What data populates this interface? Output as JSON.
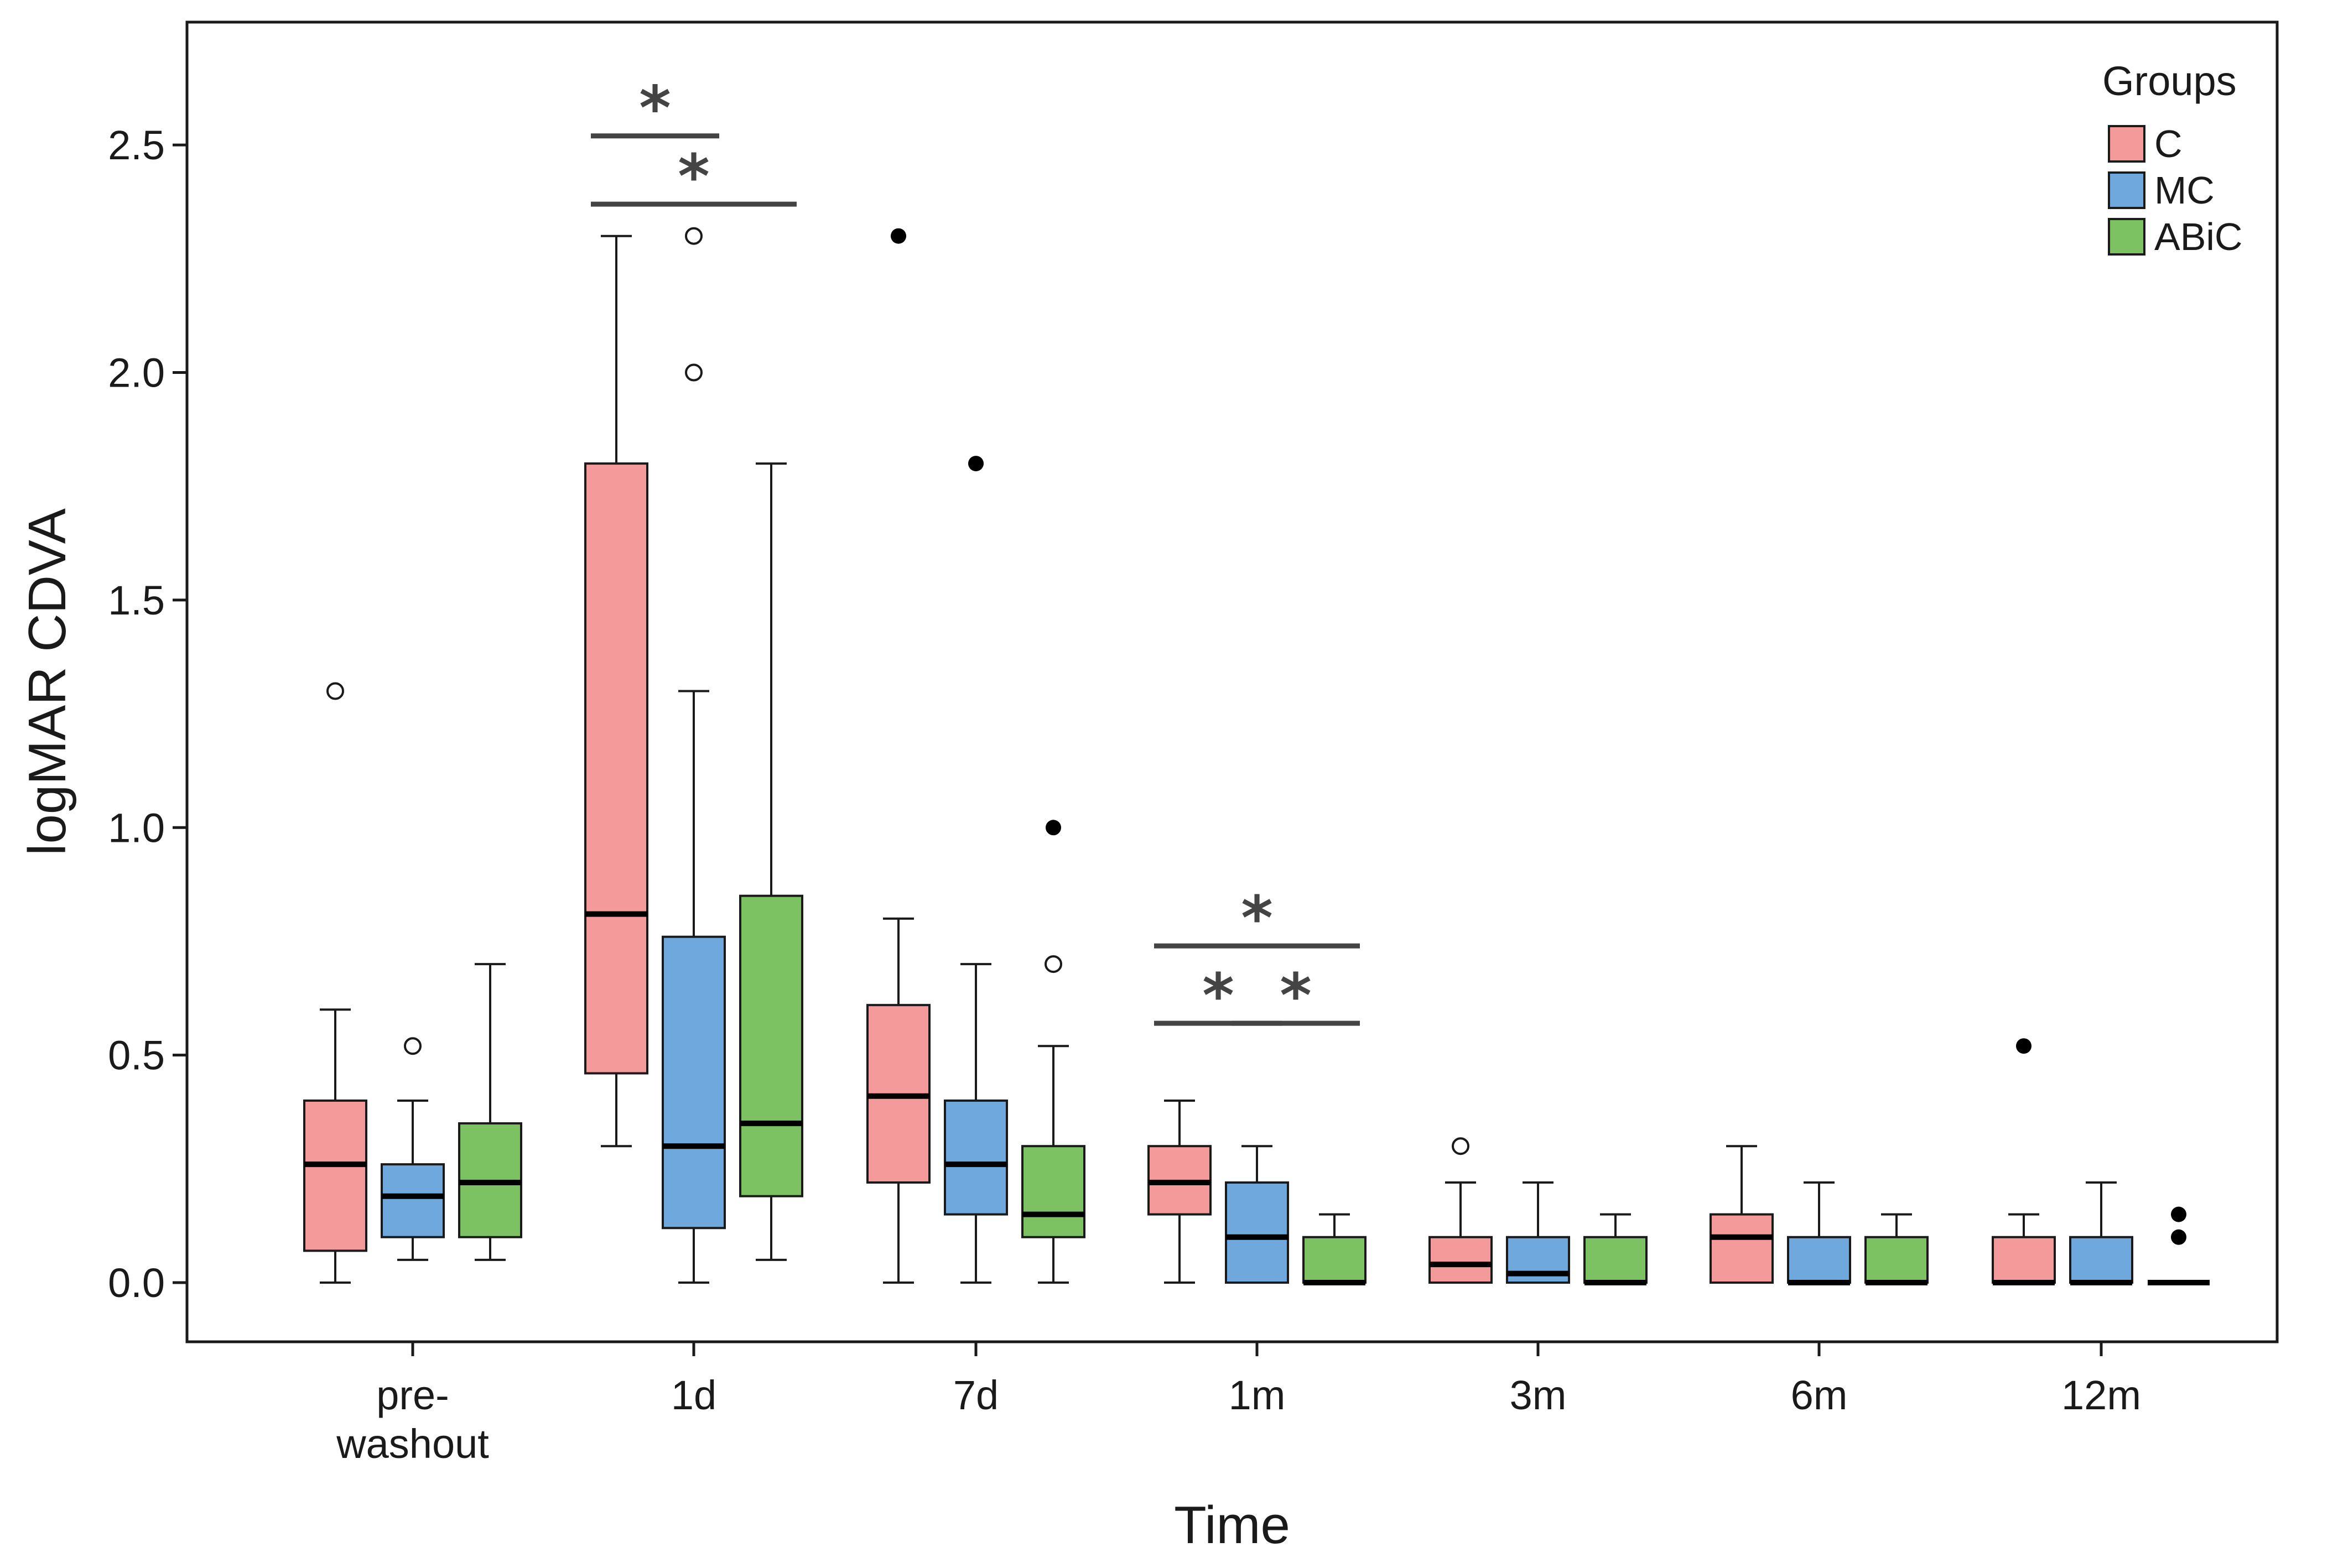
{
  "chart_data": {
    "type": "box",
    "xlabel": "Time",
    "ylabel": "logMAR  CDVA",
    "ylim": [
      -0.13,
      2.77
    ],
    "yticks": [
      "0.0",
      "0.5",
      "1.0",
      "1.5",
      "2.0",
      "2.5"
    ],
    "grid": false,
    "legend": {
      "title": "Groups",
      "position": "top-right"
    },
    "categories": [
      {
        "lines": [
          "pre-",
          "washout"
        ]
      },
      {
        "lines": [
          "1d"
        ]
      },
      {
        "lines": [
          "7d"
        ]
      },
      {
        "lines": [
          "1m"
        ]
      },
      {
        "lines": [
          "3m"
        ]
      },
      {
        "lines": [
          "6m"
        ]
      },
      {
        "lines": [
          "12m"
        ]
      }
    ],
    "series": [
      {
        "name": "C",
        "color": "#f49a9a",
        "boxes": [
          {
            "whisker_low": 0.0,
            "q1": 0.07,
            "median": 0.26,
            "q3": 0.4,
            "whisker_high": 0.6,
            "outliers": [
              1.3
            ],
            "extremes": []
          },
          {
            "whisker_low": 0.3,
            "q1": 0.46,
            "median": 0.81,
            "q3": 1.8,
            "whisker_high": 2.3,
            "outliers": [],
            "extremes": []
          },
          {
            "whisker_low": 0.0,
            "q1": 0.22,
            "median": 0.41,
            "q3": 0.61,
            "whisker_high": 0.8,
            "outliers": [],
            "extremes": [
              2.3
            ]
          },
          {
            "whisker_low": 0.0,
            "q1": 0.15,
            "median": 0.22,
            "q3": 0.3,
            "whisker_high": 0.4,
            "outliers": [],
            "extremes": []
          },
          {
            "whisker_low": 0.0,
            "q1": 0.0,
            "median": 0.04,
            "q3": 0.1,
            "whisker_high": 0.22,
            "outliers": [
              0.3
            ],
            "extremes": []
          },
          {
            "whisker_low": 0.0,
            "q1": 0.0,
            "median": 0.1,
            "q3": 0.15,
            "whisker_high": 0.3,
            "outliers": [],
            "extremes": []
          },
          {
            "whisker_low": 0.0,
            "q1": 0.0,
            "median": 0.0,
            "q3": 0.1,
            "whisker_high": 0.15,
            "outliers": [],
            "extremes": [
              0.52
            ]
          }
        ]
      },
      {
        "name": "MC",
        "color": "#6fa8dc",
        "boxes": [
          {
            "whisker_low": 0.05,
            "q1": 0.1,
            "median": 0.19,
            "q3": 0.26,
            "whisker_high": 0.4,
            "outliers": [
              0.52
            ],
            "extremes": []
          },
          {
            "whisker_low": 0.0,
            "q1": 0.12,
            "median": 0.3,
            "q3": 0.76,
            "whisker_high": 1.3,
            "outliers": [
              2.0,
              2.3
            ],
            "extremes": []
          },
          {
            "whisker_low": 0.0,
            "q1": 0.15,
            "median": 0.26,
            "q3": 0.4,
            "whisker_high": 0.7,
            "outliers": [],
            "extremes": [
              1.8
            ]
          },
          {
            "whisker_low": 0.0,
            "q1": 0.0,
            "median": 0.1,
            "q3": 0.22,
            "whisker_high": 0.3,
            "outliers": [],
            "extremes": []
          },
          {
            "whisker_low": 0.0,
            "q1": 0.0,
            "median": 0.02,
            "q3": 0.1,
            "whisker_high": 0.22,
            "outliers": [],
            "extremes": []
          },
          {
            "whisker_low": 0.0,
            "q1": 0.0,
            "median": 0.0,
            "q3": 0.1,
            "whisker_high": 0.22,
            "outliers": [],
            "extremes": []
          },
          {
            "whisker_low": 0.0,
            "q1": 0.0,
            "median": 0.0,
            "q3": 0.1,
            "whisker_high": 0.22,
            "outliers": [],
            "extremes": []
          }
        ]
      },
      {
        "name": "ABiC",
        "color": "#7dc262",
        "boxes": [
          {
            "whisker_low": 0.05,
            "q1": 0.1,
            "median": 0.22,
            "q3": 0.35,
            "whisker_high": 0.7,
            "outliers": [],
            "extremes": []
          },
          {
            "whisker_low": 0.05,
            "q1": 0.19,
            "median": 0.35,
            "q3": 0.85,
            "whisker_high": 1.8,
            "outliers": [],
            "extremes": []
          },
          {
            "whisker_low": 0.0,
            "q1": 0.1,
            "median": 0.15,
            "q3": 0.3,
            "whisker_high": 0.52,
            "outliers": [
              0.7
            ],
            "extremes": [
              1.0
            ]
          },
          {
            "whisker_low": 0.0,
            "q1": 0.0,
            "median": 0.0,
            "q3": 0.1,
            "whisker_high": 0.15,
            "outliers": [],
            "extremes": []
          },
          {
            "whisker_low": 0.0,
            "q1": 0.0,
            "median": 0.0,
            "q3": 0.1,
            "whisker_high": 0.15,
            "outliers": [],
            "extremes": []
          },
          {
            "whisker_low": 0.0,
            "q1": 0.0,
            "median": 0.0,
            "q3": 0.1,
            "whisker_high": 0.15,
            "outliers": [],
            "extremes": []
          },
          {
            "whisker_low": 0.0,
            "q1": 0.0,
            "median": 0.0,
            "q3": 0.0,
            "whisker_high": 0.0,
            "outliers": [],
            "extremes": [
              0.1,
              0.15
            ]
          }
        ]
      }
    ],
    "significance": [
      {
        "category": 1,
        "from_series": 0,
        "to_series": 1,
        "y": 2.52,
        "label": "*"
      },
      {
        "category": 1,
        "from_series": 0,
        "to_series": 2,
        "y": 2.37,
        "label": "*"
      },
      {
        "category": 3,
        "from_series": 0,
        "to_series": 2,
        "y": 0.74,
        "label": "*"
      },
      {
        "category": 3,
        "from_series": 0,
        "to_series": 1,
        "y": 0.57,
        "label": "*"
      },
      {
        "category": 3,
        "from_series": 1,
        "to_series": 2,
        "y": 0.57,
        "label": "*"
      }
    ]
  }
}
